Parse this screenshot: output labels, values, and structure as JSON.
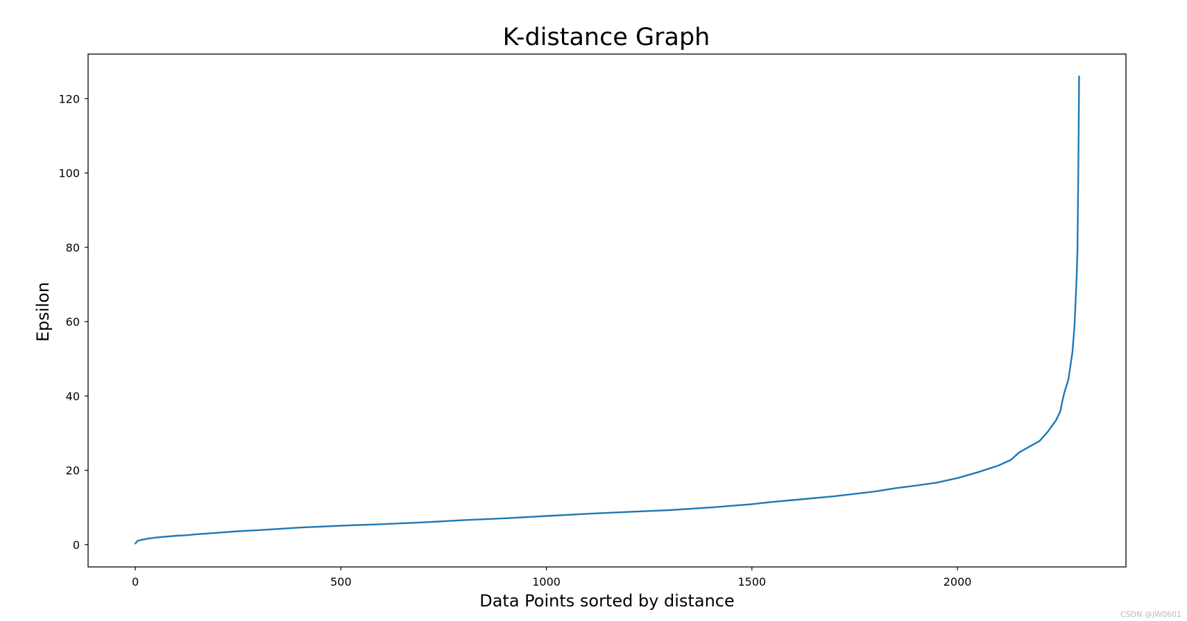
{
  "chart_data": {
    "type": "line",
    "title": "K-distance Graph",
    "xlabel": "Data Points sorted by distance",
    "ylabel": "Epsilon",
    "xlim": [
      -115,
      2410
    ],
    "ylim": [
      -6,
      132
    ],
    "x_ticks": [
      0,
      500,
      1000,
      1500,
      2000
    ],
    "y_ticks": [
      0,
      20,
      40,
      60,
      80,
      100,
      120
    ],
    "grid": false,
    "legend": "none",
    "series": [
      {
        "color": "#1f77b4",
        "x": [
          0,
          5,
          15,
          30,
          50,
          80,
          100,
          120,
          150,
          200,
          250,
          300,
          400,
          500,
          600,
          700,
          800,
          900,
          1000,
          1100,
          1200,
          1300,
          1400,
          1500,
          1550,
          1600,
          1700,
          1800,
          1850,
          1900,
          1950,
          2000,
          2050,
          2100,
          2130,
          2150,
          2200,
          2220,
          2240,
          2250,
          2255,
          2260,
          2270,
          2280,
          2285,
          2290,
          2292,
          2294,
          2296
        ],
        "y": [
          0.3,
          1.0,
          1.3,
          1.6,
          1.9,
          2.2,
          2.4,
          2.5,
          2.8,
          3.2,
          3.6,
          3.9,
          4.6,
          5.1,
          5.5,
          6.0,
          6.6,
          7.1,
          7.7,
          8.3,
          8.8,
          9.3,
          10.0,
          10.9,
          11.5,
          12.0,
          13.0,
          14.3,
          15.2,
          15.9,
          16.7,
          17.9,
          19.5,
          21.3,
          22.8,
          24.8,
          27.9,
          30.4,
          33.5,
          35.8,
          38.5,
          40.8,
          44.5,
          52.0,
          59.0,
          72.0,
          79.0,
          100.0,
          126.0
        ]
      }
    ]
  },
  "watermark": "CSDN @JW0601"
}
